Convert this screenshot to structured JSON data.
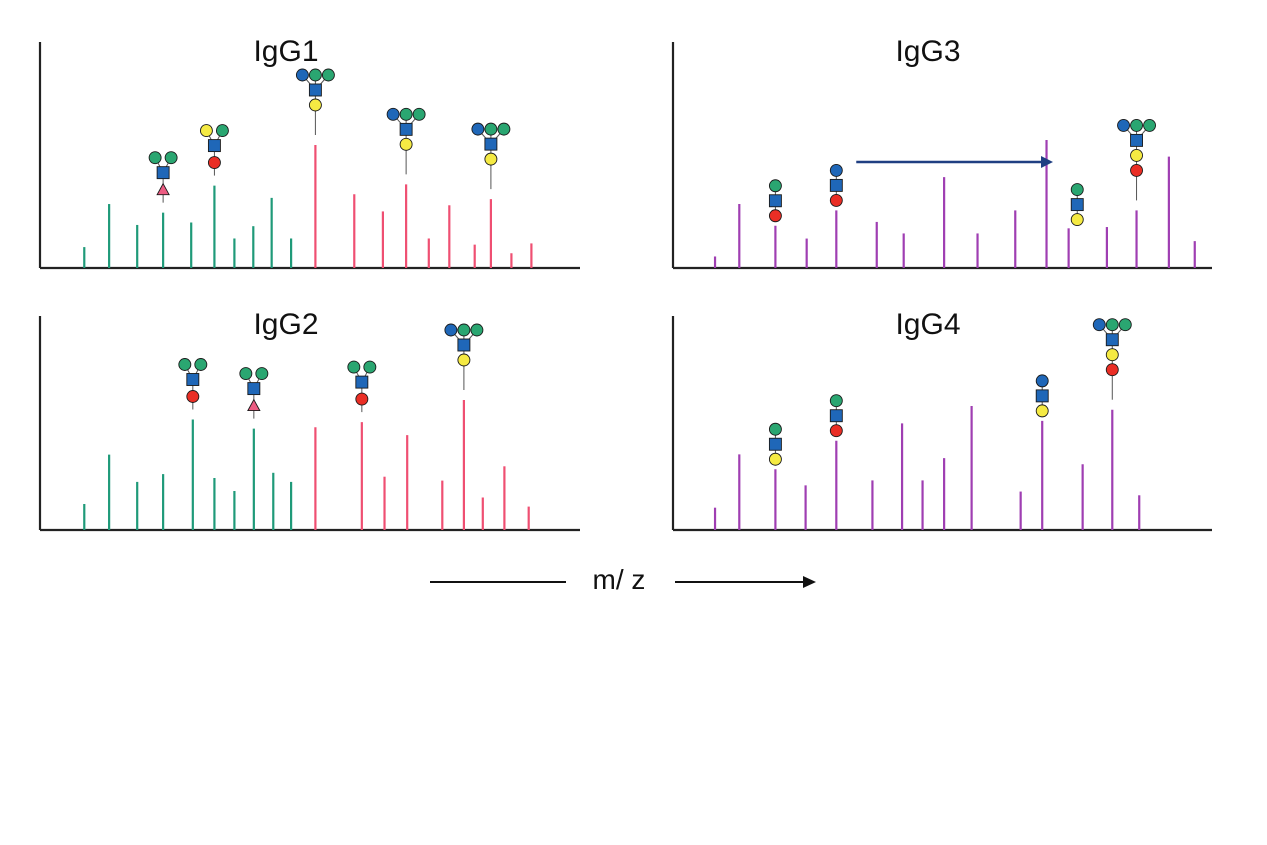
{
  "colors": {
    "green_peak": "#1f9a79",
    "pink_peak": "#ef4f72",
    "purple_peak": "#9f3eb2",
    "axis": "#222222",
    "arrow_blue": "#1f3f82",
    "glyph_green": "#2aa671",
    "glyph_blue": "#1f67b8",
    "glyph_yellow": "#f5ea43",
    "glyph_red": "#ea2e25",
    "glyph_triangle": "#ec5c82"
  },
  "axis_label": {
    "text": "m/ z"
  },
  "chart_data": [
    {
      "type": "bar",
      "title": "IgG1",
      "xlabel": "m/ z",
      "ylabel": "",
      "xlim": [
        0,
        100
      ],
      "ylim": [
        0,
        100
      ],
      "series": [
        {
          "name": "green peaks",
          "color": "#1f9a79",
          "x": [
            8.2,
            12.8,
            18.0,
            22.8,
            28.0,
            32.3,
            36.0,
            39.5,
            42.9,
            46.5
          ],
          "values": [
            17,
            52,
            35,
            45,
            37,
            67,
            24,
            34,
            57,
            24
          ]
        },
        {
          "name": "pink peaks",
          "color": "#ef4f72",
          "x": [
            51.0,
            58.2,
            63.5,
            67.8,
            72.0,
            75.8,
            80.5,
            83.5,
            87.3,
            91.0
          ],
          "values": [
            100,
            60,
            46,
            68,
            24,
            51,
            19,
            56,
            12,
            20
          ]
        }
      ],
      "glycans": [
        {
          "x": 22.8,
          "sugars": [
            "green",
            "green",
            "blue_square",
            "triangle"
          ]
        },
        {
          "x": 32.3,
          "sugars": [
            "yellow",
            "green",
            "blue_square",
            "red"
          ]
        },
        {
          "x": 51.0,
          "sugars": [
            "blue",
            "green",
            "green",
            "blue_square",
            "yellow"
          ]
        },
        {
          "x": 67.8,
          "sugars": [
            "blue",
            "green",
            "green",
            "blue_square",
            "yellow"
          ]
        },
        {
          "x": 83.5,
          "sugars": [
            "blue",
            "green",
            "green",
            "blue_square",
            "yellow"
          ]
        }
      ]
    },
    {
      "type": "bar",
      "title": "IgG2",
      "xlabel": "m/ z",
      "ylabel": "",
      "xlim": [
        0,
        100
      ],
      "ylim": [
        0,
        100
      ],
      "series": [
        {
          "name": "green peaks",
          "color": "#1f9a79",
          "x": [
            8.2,
            12.8,
            18.0,
            22.8,
            28.3,
            32.3,
            36.0,
            39.6,
            43.2,
            46.5
          ],
          "values": [
            20,
            58,
            37,
            43,
            85,
            40,
            30,
            78,
            44,
            37
          ]
        },
        {
          "name": "pink peaks",
          "color": "#ef4f72",
          "x": [
            51.0,
            59.6,
            63.8,
            68.0,
            74.5,
            78.5,
            82.0,
            86.0,
            90.5
          ],
          "values": [
            79,
            83,
            41,
            73,
            38,
            100,
            25,
            49,
            18
          ]
        }
      ],
      "glycans": [
        {
          "x": 28.3,
          "sugars": [
            "green",
            "green",
            "blue_square",
            "red"
          ]
        },
        {
          "x": 39.6,
          "sugars": [
            "green",
            "green",
            "blue_square",
            "triangle"
          ]
        },
        {
          "x": 59.6,
          "sugars": [
            "green",
            "green",
            "blue_square",
            "red"
          ]
        },
        {
          "x": 78.5,
          "sugars": [
            "blue",
            "green",
            "green",
            "blue_square",
            "yellow"
          ]
        }
      ]
    },
    {
      "type": "bar",
      "title": "IgG3",
      "xlabel": "m/ z",
      "ylabel": "",
      "xlim": [
        0,
        100
      ],
      "ylim": [
        0,
        100
      ],
      "series": [
        {
          "name": "purple peaks",
          "color": "#9f3eb2",
          "x": [
            7.8,
            12.3,
            19.0,
            24.8,
            30.3,
            37.8,
            42.8,
            50.3,
            56.5,
            63.5,
            69.3,
            73.4,
            80.5,
            86.0,
            92.0,
            96.8
          ],
          "values": [
            9,
            50,
            33,
            23,
            45,
            36,
            27,
            71,
            27,
            45,
            100,
            31,
            32,
            45,
            87,
            21
          ]
        }
      ],
      "glycans": [
        {
          "x": 19.0,
          "sugars": [
            "green",
            "blue_square",
            "red"
          ]
        },
        {
          "x": 30.3,
          "sugars": [
            "blue",
            "blue_square",
            "red"
          ]
        },
        {
          "x": 75.0,
          "sugars": [
            "green",
            "blue_square",
            "yellow"
          ]
        },
        {
          "x": 86.0,
          "sugars": [
            "blue",
            "green",
            "green",
            "blue_square",
            "yellow",
            "red"
          ]
        }
      ],
      "annotation": {
        "type": "arrow",
        "from_x": 34.0,
        "to_x": 70.5
      }
    },
    {
      "type": "bar",
      "title": "IgG4",
      "xlabel": "m/ z",
      "ylabel": "",
      "xlim": [
        0,
        100
      ],
      "ylim": [
        0,
        100
      ],
      "series": [
        {
          "name": "purple peaks",
          "color": "#9f3eb2",
          "x": [
            7.8,
            12.3,
            19.0,
            24.6,
            30.3,
            37.0,
            42.5,
            46.3,
            50.3,
            55.4,
            64.5,
            68.5,
            76.0,
            81.5,
            86.5
          ],
          "values": [
            18,
            61,
            49,
            36,
            72,
            40,
            86,
            40,
            58,
            100,
            31,
            88,
            53,
            97,
            28
          ]
        }
      ],
      "glycans": [
        {
          "x": 19.0,
          "sugars": [
            "green",
            "blue_square",
            "yellow"
          ]
        },
        {
          "x": 30.3,
          "sugars": [
            "green",
            "blue_square",
            "red"
          ]
        },
        {
          "x": 68.5,
          "sugars": [
            "blue",
            "blue_square",
            "yellow"
          ]
        },
        {
          "x": 81.5,
          "sugars": [
            "blue",
            "green",
            "green",
            "blue_square",
            "yellow",
            "red"
          ]
        }
      ]
    }
  ]
}
